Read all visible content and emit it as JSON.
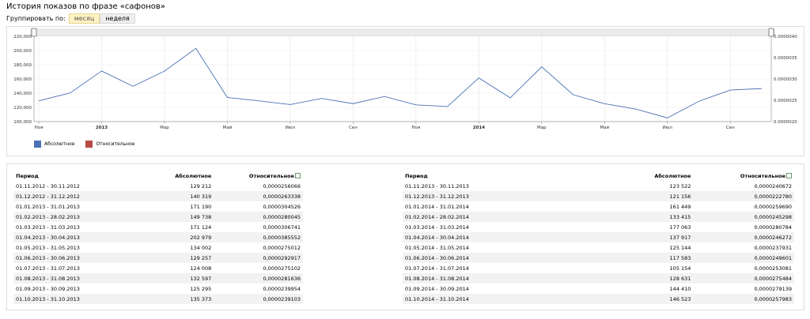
{
  "header": {
    "title": "История показов по фразе «сафонов»",
    "group_label": "Группировать по:",
    "btn_month": "месяц",
    "btn_week": "неделя"
  },
  "chart_data": {
    "type": "line",
    "categories": [
      "2012-11",
      "2012-12",
      "2013-01",
      "2013-02",
      "2013-03",
      "2013-04",
      "2013-05",
      "2013-06",
      "2013-07",
      "2013-08",
      "2013-09",
      "2013-10",
      "2013-11",
      "2013-12",
      "2014-01",
      "2014-02",
      "2014-03",
      "2014-04",
      "2014-05",
      "2014-06",
      "2014-07",
      "2014-08",
      "2014-09",
      "2014-10"
    ],
    "x_tick_labels": [
      "Ноя",
      "2013",
      "Мар",
      "Май",
      "Июл",
      "Сен",
      "Ноя",
      "2014",
      "Мар",
      "Май",
      "Июл",
      "Сен"
    ],
    "y_left_ticks": [
      "220,000",
      "200,000",
      "180,000",
      "160,000",
      "140,000",
      "120,000",
      "100,000"
    ],
    "y_right_ticks": [
      "0.0000040",
      "0.0000035",
      "0.0000030",
      "0.0000025",
      "0.0000020"
    ],
    "ylim_left": [
      100000,
      220000
    ],
    "ylim_right": [
      2e-06,
      4e-06
    ],
    "series": [
      {
        "name": "Абсолютное",
        "axis": "left",
        "color": "#4a71b5",
        "values": [
          129212,
          140319,
          171190,
          149738,
          171124,
          202979,
          134002,
          129257,
          124008,
          132597,
          125295,
          135373,
          123522,
          121156,
          161449,
          133415,
          177063,
          137917,
          125144,
          117583,
          105154,
          128631,
          144410,
          146523
        ]
      },
      {
        "name": "Относительное",
        "axis": "right",
        "color": "#b84a45",
        "values": [
          2.56066e-05,
          2.63338e-05,
          3.04526e-05,
          2.80045e-05,
          3.06741e-05,
          3.85552e-05,
          2.75012e-05,
          2.92917e-05,
          2.75102e-05,
          2.81636e-05,
          2.39954e-05,
          2.39103e-05,
          2.40672e-05,
          2.2278e-05,
          2.5969e-05,
          2.45298e-05,
          2.80784e-05,
          2.46272e-05,
          2.37931e-05,
          2.49601e-05,
          2.53081e-05,
          2.75484e-05,
          2.79139e-05,
          2.57983e-05
        ]
      }
    ],
    "grid": true,
    "legend_position": "bottom-left"
  },
  "table": {
    "headers": {
      "period": "Период",
      "absolute": "Абсолютное",
      "relative": "Относительное"
    },
    "left_rows": [
      {
        "period": "01.11.2012 - 30.11.2012",
        "abs": "129 212",
        "rel": "0,0000256066"
      },
      {
        "period": "01.12.2012 - 31.12.2012",
        "abs": "140 319",
        "rel": "0,0000263338"
      },
      {
        "period": "01.01.2013 - 31.01.2013",
        "abs": "171 190",
        "rel": "0,0000304526"
      },
      {
        "period": "01.02.2013 - 28.02.2013",
        "abs": "149 738",
        "rel": "0,0000280045"
      },
      {
        "period": "01.03.2013 - 31.03.2013",
        "abs": "171 124",
        "rel": "0,0000306741"
      },
      {
        "period": "01.04.2013 - 30.04.2013",
        "abs": "202 979",
        "rel": "0,0000385552"
      },
      {
        "period": "01.05.2013 - 31.05.2013",
        "abs": "134 002",
        "rel": "0,0000275012"
      },
      {
        "period": "01.06.2013 - 30.06.2013",
        "abs": "129 257",
        "rel": "0,0000292917"
      },
      {
        "period": "01.07.2013 - 31.07.2013",
        "abs": "124 008",
        "rel": "0,0000275102"
      },
      {
        "period": "01.08.2013 - 31.08.2013",
        "abs": "132 597",
        "rel": "0,0000281636"
      },
      {
        "period": "01.09.2013 - 30.09.2013",
        "abs": "125 295",
        "rel": "0,0000239954"
      },
      {
        "period": "01.10.2013 - 31.10.2013",
        "abs": "135 373",
        "rel": "0,0000239103"
      }
    ],
    "right_rows": [
      {
        "period": "01.11.2013 - 30.11.2013",
        "abs": "123 522",
        "rel": "0,0000240672"
      },
      {
        "period": "01.12.2013 - 31.12.2013",
        "abs": "121 156",
        "rel": "0,0000222780"
      },
      {
        "period": "01.01.2014 - 31.01.2014",
        "abs": "161 449",
        "rel": "0,0000259690"
      },
      {
        "period": "01.02.2014 - 28.02.2014",
        "abs": "133 415",
        "rel": "0,0000245298"
      },
      {
        "period": "01.03.2014 - 31.03.2014",
        "abs": "177 063",
        "rel": "0,0000280784"
      },
      {
        "period": "01.04.2014 - 30.04.2014",
        "abs": "137 917",
        "rel": "0,0000246272"
      },
      {
        "period": "01.05.2014 - 31.05.2014",
        "abs": "125 144",
        "rel": "0,0000237931"
      },
      {
        "period": "01.06.2014 - 30.06.2014",
        "abs": "117 583",
        "rel": "0,0000249601"
      },
      {
        "period": "01.07.2014 - 31.07.2014",
        "abs": "105 154",
        "rel": "0,0000253081"
      },
      {
        "period": "01.08.2014 - 31.08.2014",
        "abs": "128 631",
        "rel": "0,0000275484"
      },
      {
        "period": "01.09.2014 - 30.09.2014",
        "abs": "144 410",
        "rel": "0,0000279139"
      },
      {
        "period": "01.10.2014 - 31.10.2014",
        "abs": "146 523",
        "rel": "0,0000257983"
      }
    ]
  }
}
